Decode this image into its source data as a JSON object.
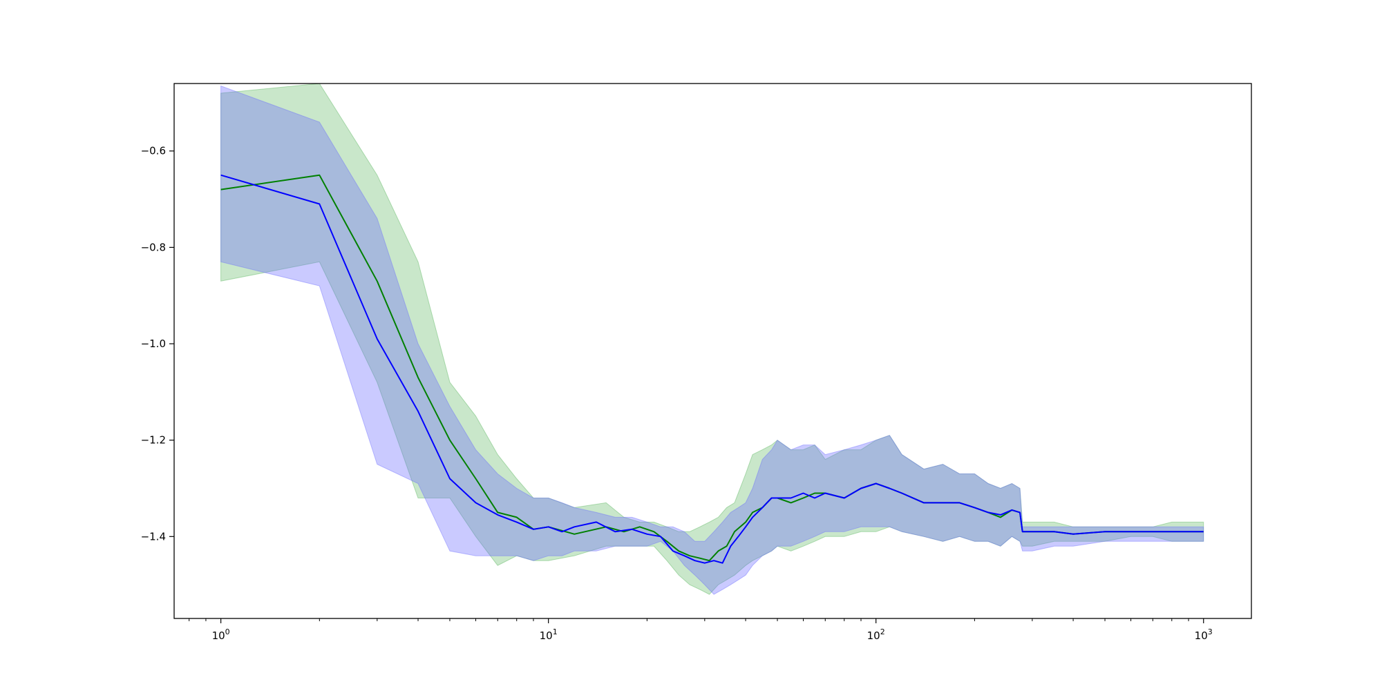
{
  "chart_data": {
    "type": "line",
    "title": "",
    "xlabel": "",
    "ylabel": "",
    "x_scale": "log",
    "xlim": [
      0.72,
      1400
    ],
    "ylim": [
      -1.57,
      -0.46
    ],
    "grid": false,
    "legend": "none",
    "x_ticks": [
      {
        "value": 1,
        "base": "10",
        "exp": "0"
      },
      {
        "value": 10,
        "base": "10",
        "exp": "1"
      },
      {
        "value": 100,
        "base": "10",
        "exp": "2"
      },
      {
        "value": 1000,
        "base": "10",
        "exp": "3"
      }
    ],
    "y_ticks": [
      {
        "value": -1.4,
        "label": "−1.4"
      },
      {
        "value": -1.2,
        "label": "−1.2"
      },
      {
        "value": -1.0,
        "label": "−1.0"
      },
      {
        "value": -0.8,
        "label": "−0.8"
      },
      {
        "value": -0.6,
        "label": "−0.6"
      }
    ],
    "series": [
      {
        "color": "#008000",
        "band_color": "#4CAF50",
        "band_opacity": 0.3,
        "x": [
          1,
          2,
          3,
          4,
          5,
          6,
          7,
          8,
          9,
          10,
          12,
          15,
          17,
          19,
          21,
          23,
          25,
          27,
          29,
          31,
          33,
          35,
          37,
          40,
          42,
          45,
          48,
          50,
          55,
          60,
          65,
          70,
          80,
          90,
          100,
          110,
          120,
          140,
          160,
          180,
          200,
          220,
          240,
          260,
          275,
          280,
          300,
          350,
          400,
          500,
          600,
          700,
          800,
          900,
          1000
        ],
        "mean": [
          -0.68,
          -0.65,
          -0.87,
          -1.07,
          -1.2,
          -1.28,
          -1.35,
          -1.36,
          -1.385,
          -1.38,
          -1.395,
          -1.38,
          -1.39,
          -1.38,
          -1.39,
          -1.41,
          -1.43,
          -1.44,
          -1.445,
          -1.45,
          -1.43,
          -1.42,
          -1.39,
          -1.37,
          -1.35,
          -1.34,
          -1.32,
          -1.32,
          -1.33,
          -1.32,
          -1.31,
          -1.31,
          -1.32,
          -1.3,
          -1.29,
          -1.3,
          -1.31,
          -1.33,
          -1.33,
          -1.33,
          -1.34,
          -1.35,
          -1.36,
          -1.345,
          -1.35,
          -1.39,
          -1.39,
          -1.39,
          -1.395,
          -1.39,
          -1.39,
          -1.39,
          -1.39,
          -1.39,
          -1.39
        ],
        "upper": [
          -0.48,
          -0.46,
          -0.65,
          -0.83,
          -1.08,
          -1.15,
          -1.23,
          -1.28,
          -1.32,
          -1.32,
          -1.34,
          -1.33,
          -1.36,
          -1.37,
          -1.37,
          -1.38,
          -1.39,
          -1.39,
          -1.38,
          -1.37,
          -1.36,
          -1.34,
          -1.33,
          -1.27,
          -1.23,
          -1.22,
          -1.21,
          -1.2,
          -1.22,
          -1.22,
          -1.21,
          -1.24,
          -1.22,
          -1.22,
          -1.2,
          -1.19,
          -1.23,
          -1.26,
          -1.25,
          -1.27,
          -1.27,
          -1.29,
          -1.3,
          -1.29,
          -1.3,
          -1.37,
          -1.37,
          -1.37,
          -1.38,
          -1.38,
          -1.38,
          -1.38,
          -1.37,
          -1.37,
          -1.37
        ],
        "lower": [
          -0.87,
          -0.83,
          -1.08,
          -1.32,
          -1.32,
          -1.4,
          -1.46,
          -1.44,
          -1.45,
          -1.45,
          -1.44,
          -1.42,
          -1.42,
          -1.42,
          -1.42,
          -1.45,
          -1.48,
          -1.5,
          -1.51,
          -1.52,
          -1.5,
          -1.49,
          -1.48,
          -1.46,
          -1.45,
          -1.44,
          -1.43,
          -1.42,
          -1.43,
          -1.42,
          -1.41,
          -1.4,
          -1.4,
          -1.39,
          -1.39,
          -1.38,
          -1.39,
          -1.4,
          -1.41,
          -1.4,
          -1.41,
          -1.41,
          -1.42,
          -1.4,
          -1.41,
          -1.42,
          -1.42,
          -1.41,
          -1.41,
          -1.41,
          -1.4,
          -1.4,
          -1.41,
          -1.41,
          -1.41
        ]
      },
      {
        "color": "#0000FF",
        "band_color": "#6666FF",
        "band_opacity": 0.35,
        "x": [
          1,
          2,
          3,
          4,
          5,
          6,
          7,
          8,
          9,
          10,
          11,
          12,
          14,
          16,
          18,
          20,
          22,
          24,
          26,
          28,
          30,
          32,
          34,
          36,
          38,
          40,
          42,
          45,
          48,
          50,
          55,
          60,
          65,
          70,
          80,
          90,
          100,
          110,
          120,
          140,
          160,
          180,
          200,
          220,
          240,
          260,
          275,
          280,
          300,
          350,
          400,
          500,
          600,
          700,
          800,
          900,
          1000
        ],
        "mean": [
          -0.65,
          -0.71,
          -0.99,
          -1.14,
          -1.28,
          -1.33,
          -1.355,
          -1.37,
          -1.385,
          -1.38,
          -1.39,
          -1.38,
          -1.37,
          -1.39,
          -1.385,
          -1.395,
          -1.4,
          -1.43,
          -1.44,
          -1.45,
          -1.455,
          -1.45,
          -1.455,
          -1.42,
          -1.4,
          -1.38,
          -1.36,
          -1.34,
          -1.32,
          -1.32,
          -1.32,
          -1.31,
          -1.32,
          -1.31,
          -1.32,
          -1.3,
          -1.29,
          -1.3,
          -1.31,
          -1.33,
          -1.33,
          -1.33,
          -1.34,
          -1.35,
          -1.355,
          -1.345,
          -1.35,
          -1.39,
          -1.39,
          -1.39,
          -1.395,
          -1.39,
          -1.39,
          -1.39,
          -1.39,
          -1.39,
          -1.39
        ],
        "upper": [
          -0.465,
          -0.54,
          -0.74,
          -1.0,
          -1.13,
          -1.22,
          -1.27,
          -1.3,
          -1.32,
          -1.32,
          -1.33,
          -1.34,
          -1.35,
          -1.36,
          -1.36,
          -1.37,
          -1.38,
          -1.38,
          -1.39,
          -1.41,
          -1.41,
          -1.39,
          -1.37,
          -1.35,
          -1.34,
          -1.33,
          -1.3,
          -1.24,
          -1.22,
          -1.2,
          -1.22,
          -1.21,
          -1.21,
          -1.23,
          -1.22,
          -1.21,
          -1.2,
          -1.19,
          -1.23,
          -1.26,
          -1.25,
          -1.27,
          -1.27,
          -1.29,
          -1.3,
          -1.29,
          -1.3,
          -1.38,
          -1.38,
          -1.38,
          -1.38,
          -1.38,
          -1.38,
          -1.38,
          -1.38,
          -1.38,
          -1.38
        ],
        "lower": [
          -0.83,
          -0.88,
          -1.25,
          -1.29,
          -1.43,
          -1.44,
          -1.44,
          -1.44,
          -1.45,
          -1.44,
          -1.44,
          -1.43,
          -1.43,
          -1.42,
          -1.42,
          -1.42,
          -1.41,
          -1.43,
          -1.46,
          -1.48,
          -1.5,
          -1.52,
          -1.51,
          -1.5,
          -1.49,
          -1.48,
          -1.46,
          -1.44,
          -1.43,
          -1.42,
          -1.42,
          -1.41,
          -1.4,
          -1.39,
          -1.39,
          -1.38,
          -1.38,
          -1.38,
          -1.39,
          -1.4,
          -1.41,
          -1.4,
          -1.41,
          -1.41,
          -1.42,
          -1.4,
          -1.41,
          -1.43,
          -1.43,
          -1.42,
          -1.42,
          -1.41,
          -1.41,
          -1.41,
          -1.41,
          -1.41,
          -1.41
        ]
      }
    ]
  }
}
